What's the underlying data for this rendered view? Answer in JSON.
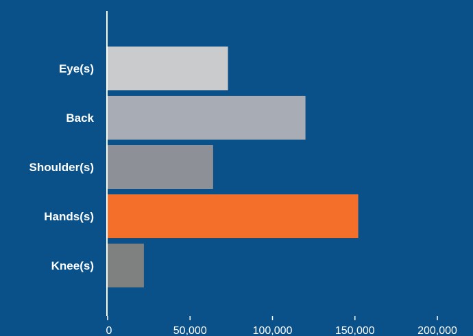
{
  "chart_data": {
    "type": "bar",
    "orientation": "horizontal",
    "categories": [
      "Eye(s)",
      "Back",
      "Shoulder(s)",
      "Hands(s)",
      "Knee(s)"
    ],
    "values": [
      73000,
      120000,
      64000,
      152000,
      22000
    ],
    "bar_colors": [
      "#c9cbcd",
      "#a8acb4",
      "#8d9097",
      "#f36f2a",
      "#7f8181"
    ],
    "xlim": [
      0,
      200000
    ],
    "x_ticks": [
      0,
      50000,
      100000,
      150000,
      200000
    ],
    "x_tick_labels": [
      "0",
      "50,000",
      "100,000",
      "150,000",
      "200,000"
    ],
    "grid": false,
    "title": "",
    "xlabel": "",
    "ylabel": ""
  },
  "colors": {
    "background": "#0a5189",
    "axis": "#ffffff",
    "text": "#ffffff"
  }
}
